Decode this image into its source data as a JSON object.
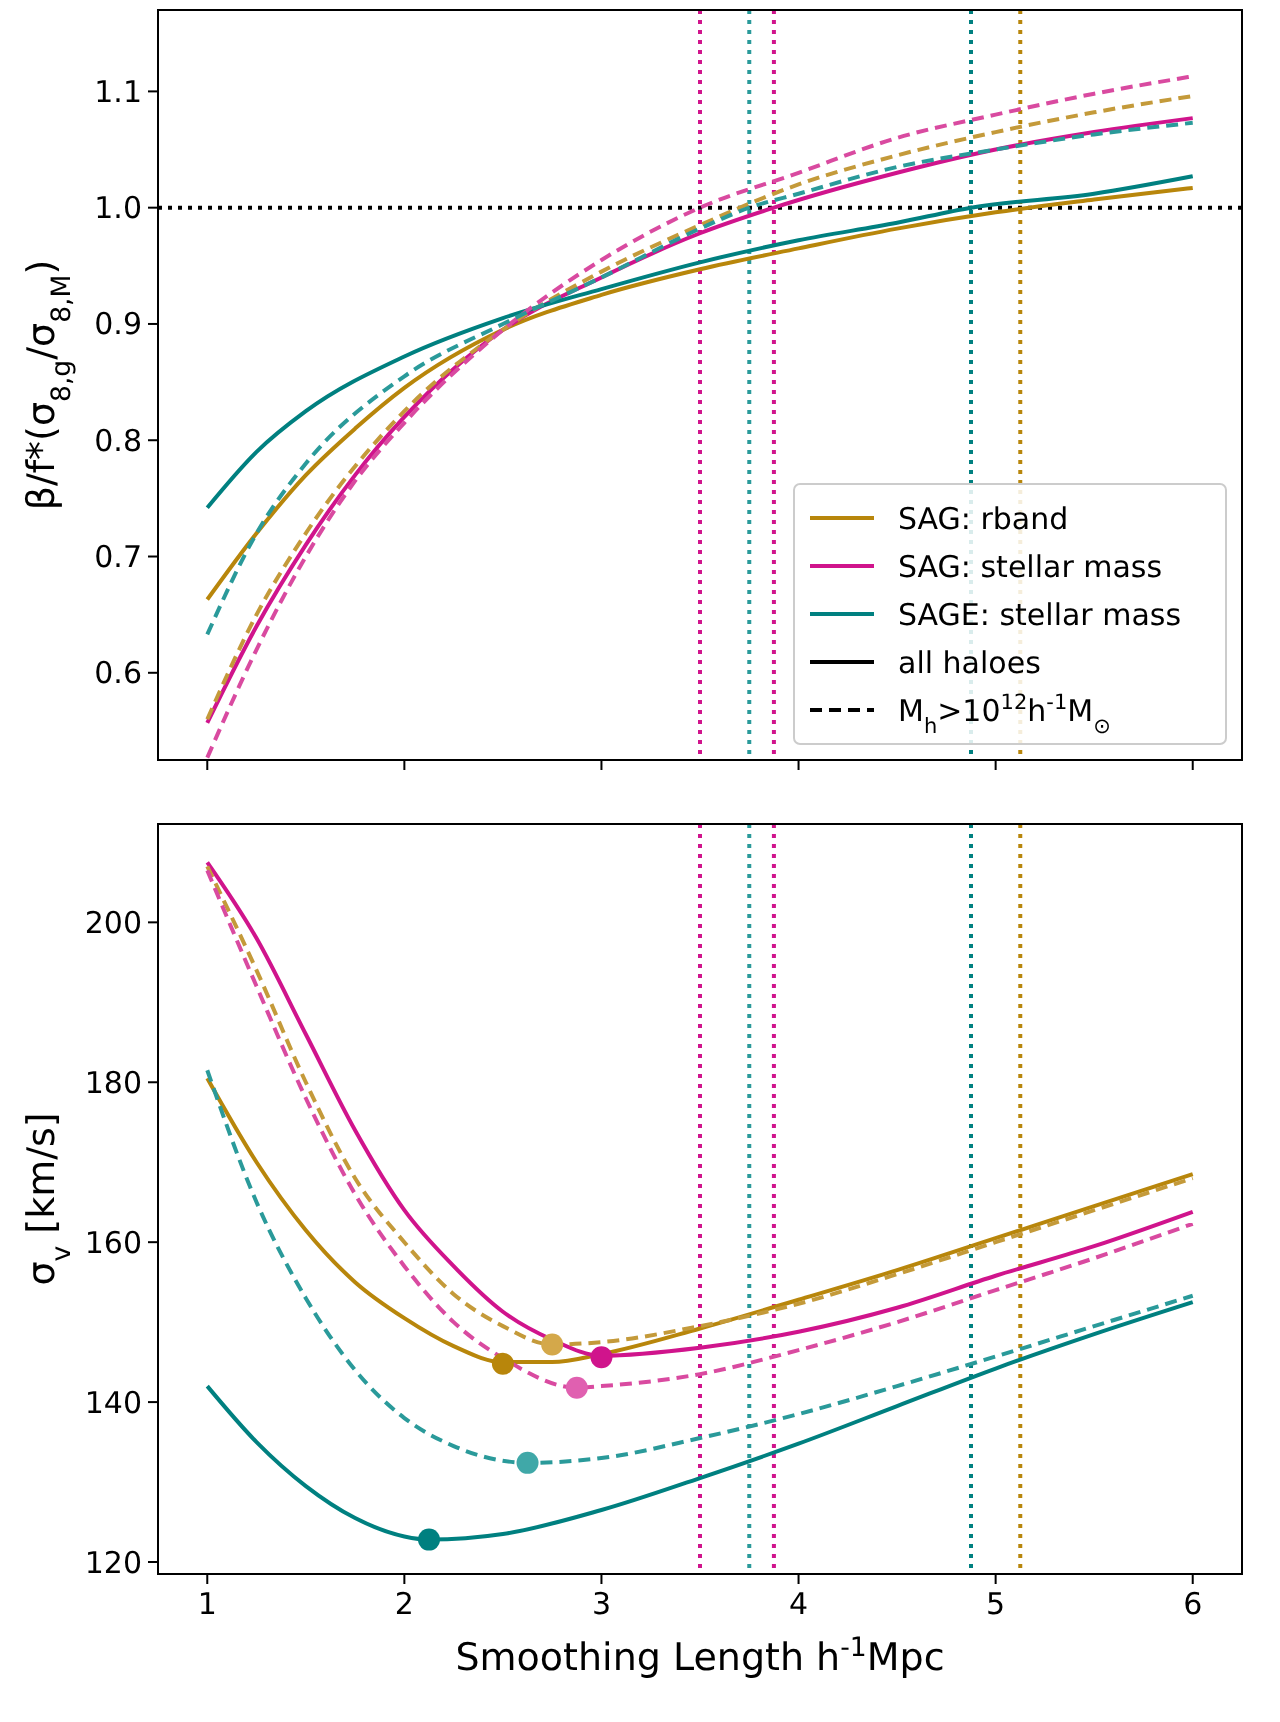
{
  "chart_data": [
    {
      "type": "line",
      "ylabel": "β/f*(σ$_{8,g}$/σ$_{8,M}$)",
      "xlim": [
        0.75,
        6.25
      ],
      "xticks": [
        1,
        2,
        3,
        4,
        5,
        6
      ],
      "ylim": [
        0.525,
        1.17
      ],
      "yticks": [
        {
          "value": 0.6,
          "label": "0.6"
        },
        {
          "value": 0.7,
          "label": "0.7"
        },
        {
          "value": 0.8,
          "label": "0.8"
        },
        {
          "value": 0.9,
          "label": "0.9"
        },
        {
          "value": 1.0,
          "label": "1.0"
        },
        {
          "value": 1.1,
          "label": "1.1"
        }
      ],
      "tick_labels": "y",
      "grid": false,
      "legend": "bottom right",
      "ref_lines": [
        {
          "axis": "y",
          "value": 1.0,
          "color": "#000000",
          "line_style": "dotted"
        },
        {
          "axis": "x",
          "value": 3.5,
          "color": "#d0148c",
          "line_style": "dotted"
        },
        {
          "axis": "x",
          "value": 3.75,
          "color": "#2a9a9a",
          "line_style": "dotted"
        },
        {
          "axis": "x",
          "value": 3.875,
          "color": "#d0148c",
          "line_style": "dotted"
        },
        {
          "axis": "x",
          "value": 4.875,
          "color": "#008080",
          "line_style": "dotted"
        },
        {
          "axis": "x",
          "value": 5.125,
          "color": "#b8860b",
          "line_style": "dotted"
        }
      ],
      "series": [
        {
          "name": "SAG: rband",
          "color": "#b8860b",
          "line_style": "solid",
          "x": [
            1,
            1.25,
            1.5,
            1.75,
            2,
            2.5,
            3,
            3.5,
            4,
            4.5,
            5,
            5.5,
            6
          ],
          "values": [
            0.663,
            0.72,
            0.77,
            0.81,
            0.845,
            0.895,
            0.925,
            0.947,
            0.965,
            0.982,
            0.996,
            1.007,
            1.017
          ]
        },
        {
          "name": "SAG: stellar mass",
          "color": "#d0148c",
          "line_style": "solid",
          "x": [
            1,
            1.25,
            1.5,
            1.75,
            2,
            2.5,
            3,
            3.5,
            3.875,
            4.5,
            5,
            5.5,
            6
          ],
          "values": [
            0.557,
            0.64,
            0.71,
            0.77,
            0.82,
            0.895,
            0.94,
            0.978,
            1.0,
            1.03,
            1.05,
            1.065,
            1.077
          ]
        },
        {
          "name": "SAGE: stellar mass",
          "color": "#008080",
          "line_style": "solid",
          "x": [
            1,
            1.25,
            1.5,
            2,
            2.5,
            3,
            3.5,
            4,
            4.5,
            4.875,
            5.5,
            6
          ],
          "values": [
            0.742,
            0.79,
            0.825,
            0.872,
            0.905,
            0.93,
            0.953,
            0.972,
            0.987,
            1.0,
            1.012,
            1.027
          ]
        },
        {
          "color": "#c49a3a",
          "line_style": "dashed",
          "x": [
            1,
            1.25,
            1.5,
            2,
            2.5,
            3,
            3.5,
            4,
            4.5,
            5,
            5.5,
            6
          ],
          "values": [
            0.56,
            0.65,
            0.72,
            0.825,
            0.895,
            0.945,
            0.985,
            1.02,
            1.045,
            1.065,
            1.082,
            1.096
          ]
        },
        {
          "color": "#d94aa0",
          "line_style": "dashed",
          "x": [
            1,
            1.25,
            1.5,
            1.75,
            2,
            2.5,
            3,
            3.5,
            4,
            4.5,
            5,
            5.5,
            6
          ],
          "values": [
            0.527,
            0.62,
            0.7,
            0.765,
            0.815,
            0.895,
            0.955,
            1.0,
            1.03,
            1.06,
            1.08,
            1.098,
            1.113
          ]
        },
        {
          "color": "#2a9a9a",
          "line_style": "dashed",
          "x": [
            1,
            1.25,
            1.5,
            2,
            2.5,
            3,
            3.5,
            3.75,
            4,
            4.5,
            5,
            5.5,
            6
          ],
          "values": [
            0.633,
            0.72,
            0.78,
            0.855,
            0.9,
            0.94,
            0.982,
            1.0,
            1.012,
            1.035,
            1.05,
            1.063,
            1.073
          ]
        },
        {
          "name": "all haloes",
          "color": "#000000",
          "line_style": "solid"
        },
        {
          "name": "M$_{h}$>10$^{12}$h$^{-1}$M$_{⊙}$",
          "color": "#000000",
          "line_style": "dashed"
        }
      ]
    },
    {
      "type": "line",
      "xlabel": "Smoothing Length h$^{-1}$Mpc",
      "ylabel": "σ$_{v}$ [km/s]",
      "xlim": [
        0.75,
        6.25
      ],
      "xticks": [
        1,
        2,
        3,
        4,
        5,
        6
      ],
      "ylim": [
        118.5,
        212.3
      ],
      "yticks": [
        120,
        140,
        160,
        180,
        200
      ],
      "grid": false,
      "ref_lines": [
        {
          "axis": "x",
          "value": 3.5,
          "color": "#d0148c",
          "line_style": "dotted"
        },
        {
          "axis": "x",
          "value": 3.75,
          "color": "#2a9a9a",
          "line_style": "dotted"
        },
        {
          "axis": "x",
          "value": 3.875,
          "color": "#d0148c",
          "line_style": "dotted"
        },
        {
          "axis": "x",
          "value": 4.875,
          "color": "#008080",
          "line_style": "dotted"
        },
        {
          "axis": "x",
          "value": 5.125,
          "color": "#b8860b",
          "line_style": "dotted"
        }
      ],
      "series": [
        {
          "color": "#b8860b",
          "line_style": "solid",
          "x": [
            1,
            1.25,
            1.5,
            1.75,
            2,
            2.25,
            2.5,
            2.75,
            3,
            3.5,
            4,
            4.5,
            5,
            5.5,
            6
          ],
          "values": [
            180.5,
            170,
            161.5,
            155,
            150.5,
            147,
            145,
            145,
            146,
            149.2,
            152.8,
            156.5,
            160.5,
            164.5,
            168.5
          ]
        },
        {
          "color": "#d0148c",
          "line_style": "solid",
          "x": [
            1,
            1.25,
            1.5,
            1.75,
            2,
            2.25,
            2.5,
            2.75,
            3,
            3.5,
            4,
            4.5,
            5,
            5.5,
            6
          ],
          "values": [
            207.5,
            198,
            186,
            174,
            164,
            157,
            151.3,
            147.8,
            145.8,
            146.8,
            148.8,
            151.8,
            155.8,
            159.5,
            163.8
          ]
        },
        {
          "color": "#008080",
          "line_style": "solid",
          "x": [
            1,
            1.25,
            1.5,
            1.75,
            2,
            2.125,
            2.5,
            3,
            3.5,
            4,
            4.5,
            5,
            5.5,
            6
          ],
          "values": [
            142,
            135,
            129.5,
            125.5,
            123.2,
            122.8,
            123.5,
            126.5,
            130.5,
            134.8,
            139.5,
            144.2,
            148.5,
            152.5
          ]
        },
        {
          "color": "#c49a3a",
          "line_style": "dashed",
          "x": [
            1,
            1.25,
            1.5,
            1.75,
            2,
            2.25,
            2.5,
            2.75,
            3,
            3.5,
            4,
            4.5,
            5,
            5.5,
            6
          ],
          "values": [
            207,
            194,
            180,
            168,
            160,
            153.5,
            149.5,
            147.2,
            147.5,
            149.5,
            152.3,
            156,
            160,
            164,
            168
          ]
        },
        {
          "color": "#d94aa0",
          "line_style": "dashed",
          "x": [
            1,
            1.25,
            1.5,
            1.75,
            2,
            2.25,
            2.5,
            2.875,
            3,
            3.5,
            4,
            4.5,
            5,
            5.5,
            6
          ],
          "values": [
            206.5,
            192,
            178,
            166,
            157,
            150,
            145.5,
            141.8,
            142,
            143.5,
            146.5,
            150,
            154,
            158,
            162.3
          ]
        },
        {
          "color": "#2a9a9a",
          "line_style": "dashed",
          "x": [
            1,
            1.25,
            1.5,
            1.75,
            2,
            2.25,
            2.625,
            3,
            3.5,
            4,
            4.5,
            5,
            5.5,
            6
          ],
          "values": [
            181.5,
            165,
            153,
            144,
            138,
            134.5,
            132.4,
            133,
            135.5,
            138.5,
            142,
            145.7,
            149.5,
            153.3
          ]
        },
        {
          "type": "scatter",
          "marker": "circle",
          "color": "#b8860b",
          "x": [
            2.5
          ],
          "values": [
            144.8
          ]
        },
        {
          "type": "scatter",
          "marker": "circle",
          "color": "#d0148c",
          "x": [
            3.0
          ],
          "values": [
            145.6
          ]
        },
        {
          "type": "scatter",
          "marker": "circle",
          "color": "#008080",
          "x": [
            2.125
          ],
          "values": [
            122.8
          ]
        },
        {
          "type": "scatter",
          "marker": "circle",
          "color": "#d4a84a",
          "x": [
            2.75
          ],
          "values": [
            147.2
          ]
        },
        {
          "type": "scatter",
          "marker": "circle",
          "color": "#e060b0",
          "x": [
            2.875
          ],
          "values": [
            141.8
          ]
        },
        {
          "type": "scatter",
          "marker": "circle",
          "color": "#40a8a8",
          "x": [
            2.625
          ],
          "values": [
            132.4
          ]
        }
      ]
    }
  ]
}
